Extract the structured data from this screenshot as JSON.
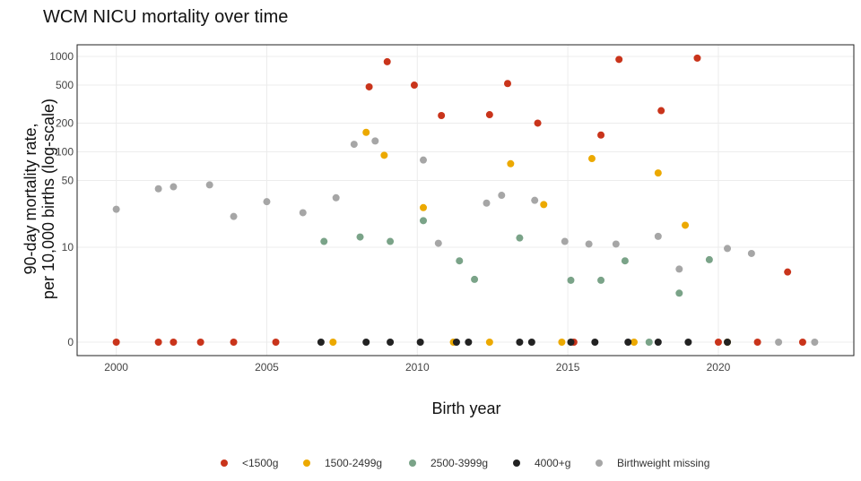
{
  "chart_data": {
    "type": "scatter",
    "title": "WCM NICU mortality over time",
    "xlabel": "Birth year",
    "ylabel_lines": [
      "90-day mortality rate,",
      "per 10,000 births (log-scale)"
    ],
    "x_range": [
      1998.7,
      2024.5
    ],
    "x_ticks": [
      2000,
      2005,
      2010,
      2015,
      2020
    ],
    "y_scale": "log (zero plotted on separate baseline)",
    "y_ticks": [
      {
        "label": "1000",
        "value": 1000
      },
      {
        "label": "500",
        "value": 500
      },
      {
        "label": "200",
        "value": 200
      },
      {
        "label": "100",
        "value": 100
      },
      {
        "label": "50",
        "value": 50
      },
      {
        "label": "10",
        "value": 10
      },
      {
        "label": "0",
        "value": 0
      }
    ],
    "grid": true,
    "legend_position": "bottom",
    "series": [
      {
        "name": "<1500g",
        "color": "#c9341b",
        "points": [
          [
            2000.0,
            0
          ],
          [
            2001.4,
            0
          ],
          [
            2001.9,
            0
          ],
          [
            2002.8,
            0
          ],
          [
            2003.9,
            0
          ],
          [
            2005.3,
            0
          ],
          [
            2008.4,
            480
          ],
          [
            2009.0,
            880
          ],
          [
            2009.9,
            500
          ],
          [
            2010.8,
            240
          ],
          [
            2012.4,
            245
          ],
          [
            2013.0,
            520
          ],
          [
            2014.0,
            200
          ],
          [
            2015.2,
            0
          ],
          [
            2016.1,
            150
          ],
          [
            2016.7,
            930
          ],
          [
            2018.1,
            270
          ],
          [
            2019.3,
            960
          ],
          [
            2020.0,
            0
          ],
          [
            2021.3,
            0
          ],
          [
            2022.3,
            5.5
          ],
          [
            2022.8,
            0
          ]
        ]
      },
      {
        "name": "1500-2499g",
        "color": "#eca900",
        "points": [
          [
            2007.2,
            0
          ],
          [
            2008.3,
            160
          ],
          [
            2008.9,
            92
          ],
          [
            2010.2,
            26
          ],
          [
            2011.2,
            0
          ],
          [
            2012.4,
            0
          ],
          [
            2013.1,
            75
          ],
          [
            2014.2,
            28
          ],
          [
            2014.8,
            0
          ],
          [
            2015.8,
            85
          ],
          [
            2017.2,
            0
          ],
          [
            2018.0,
            60
          ],
          [
            2018.9,
            17
          ],
          [
            2020.3,
            0
          ]
        ]
      },
      {
        "name": "2500-3999g",
        "color": "#7aa388",
        "points": [
          [
            2006.9,
            11.5
          ],
          [
            2008.1,
            12.8
          ],
          [
            2009.1,
            11.5
          ],
          [
            2010.2,
            19
          ],
          [
            2011.4,
            7.2
          ],
          [
            2011.9,
            4.6
          ],
          [
            2013.4,
            12.5
          ],
          [
            2015.1,
            4.5
          ],
          [
            2016.1,
            4.5
          ],
          [
            2016.9,
            7.2
          ],
          [
            2017.7,
            0
          ],
          [
            2018.7,
            3.3
          ],
          [
            2019.7,
            7.4
          ]
        ]
      },
      {
        "name": "4000+g",
        "color": "#222222",
        "points": [
          [
            2006.8,
            0
          ],
          [
            2008.3,
            0
          ],
          [
            2009.1,
            0
          ],
          [
            2010.1,
            0
          ],
          [
            2011.3,
            0
          ],
          [
            2011.7,
            0
          ],
          [
            2013.4,
            0
          ],
          [
            2013.8,
            0
          ],
          [
            2015.1,
            0
          ],
          [
            2015.9,
            0
          ],
          [
            2017.0,
            0
          ],
          [
            2018.0,
            0
          ],
          [
            2019.0,
            0
          ],
          [
            2020.3,
            0
          ]
        ]
      },
      {
        "name": "Birthweight missing",
        "color": "#a6a6a6",
        "points": [
          [
            2000.0,
            25
          ],
          [
            2001.4,
            41
          ],
          [
            2001.9,
            43
          ],
          [
            2003.1,
            45
          ],
          [
            2003.9,
            21
          ],
          [
            2005.0,
            30
          ],
          [
            2006.2,
            23
          ],
          [
            2007.3,
            33
          ],
          [
            2007.9,
            120
          ],
          [
            2008.6,
            130
          ],
          [
            2010.2,
            82
          ],
          [
            2010.7,
            11
          ],
          [
            2012.3,
            29
          ],
          [
            2012.8,
            35
          ],
          [
            2013.9,
            31
          ],
          [
            2014.9,
            11.5
          ],
          [
            2015.7,
            10.8
          ],
          [
            2016.6,
            10.8
          ],
          [
            2018.0,
            13
          ],
          [
            2018.7,
            5.9
          ],
          [
            2020.3,
            9.7
          ],
          [
            2021.1,
            8.6
          ],
          [
            2022.0,
            0
          ],
          [
            2023.2,
            0
          ]
        ]
      }
    ]
  }
}
